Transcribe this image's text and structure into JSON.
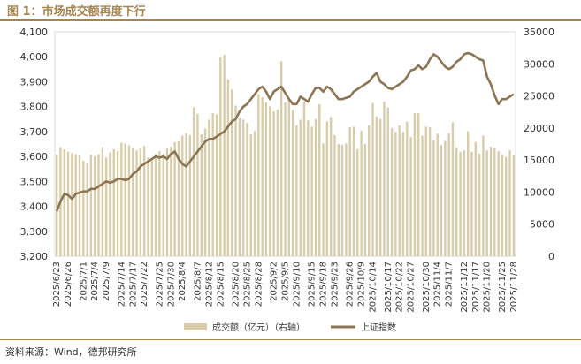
{
  "title": "图 1：市场成交额再度下行",
  "source": "资料来源：Wind，德邦研究所",
  "colors": {
    "bar": "#d8cda8",
    "line": "#8c7553",
    "accent": "#a5864d"
  },
  "chart_data": {
    "type": "bar+line",
    "series": [
      {
        "name": "成交额（亿元）（右轴）",
        "type": "bar",
        "axis": "right",
        "values": [
          15800,
          17000,
          16700,
          16300,
          16100,
          15900,
          15700,
          14900,
          14600,
          15800,
          15600,
          15900,
          17000,
          15400,
          16200,
          16700,
          16400,
          17700,
          17600,
          17300,
          16800,
          16500,
          16800,
          17200,
          15400,
          15300,
          15900,
          16400,
          16000,
          16800,
          17100,
          17800,
          17900,
          18800,
          19200,
          18900,
          23200,
          22200,
          19000,
          19900,
          21300,
          22300,
          22100,
          31000,
          31400,
          27600,
          26000,
          23500,
          21600,
          21300,
          20800,
          19000,
          19500,
          25300,
          24800,
          24000,
          23400,
          22600,
          22900,
          30400,
          24000,
          24700,
          22800,
          20400,
          21300,
          24100,
          21200,
          20200,
          21400,
          23700,
          17600,
          21000,
          21700,
          18900,
          17500,
          17400,
          17600,
          20100,
          20200,
          16700,
          19600,
          17500,
          20400,
          23900,
          21800,
          21400,
          24100,
          23200,
          20000,
          19400,
          20400,
          19400,
          21000,
          18600,
          22300,
          22300,
          18800,
          20200,
          20100,
          18100,
          19100,
          17300,
          18000,
          19200,
          20900,
          16900,
          16300,
          16500,
          19500,
          16300,
          17800,
          16000,
          18800,
          16500,
          17100,
          16900,
          16400,
          15800,
          15500,
          16500,
          15700
        ],
        "note": "daily turnover, right axis 0–35000"
      },
      {
        "name": "上证指数",
        "type": "line",
        "axis": "left",
        "values": [
          3380,
          3420,
          3450,
          3445,
          3430,
          3450,
          3455,
          3460,
          3460,
          3470,
          3470,
          3480,
          3490,
          3500,
          3495,
          3500,
          3510,
          3510,
          3505,
          3510,
          3530,
          3540,
          3560,
          3570,
          3580,
          3590,
          3600,
          3595,
          3600,
          3590,
          3610,
          3620,
          3590,
          3570,
          3560,
          3580,
          3600,
          3620,
          3640,
          3660,
          3670,
          3670,
          3680,
          3690,
          3700,
          3720,
          3740,
          3750,
          3780,
          3800,
          3810,
          3830,
          3850,
          3870,
          3880,
          3860,
          3830,
          3860,
          3870,
          3880,
          3855,
          3830,
          3810,
          3810,
          3840,
          3830,
          3820,
          3850,
          3875,
          3875,
          3860,
          3880,
          3870,
          3850,
          3830,
          3830,
          3835,
          3840,
          3860,
          3870,
          3880,
          3890,
          3900,
          3920,
          3935,
          3900,
          3890,
          3875,
          3870,
          3880,
          3890,
          3900,
          3920,
          3945,
          3950,
          3965,
          3950,
          3960,
          3990,
          4010,
          4000,
          3980,
          3960,
          3950,
          3960,
          3980,
          3990,
          4010,
          4015,
          4010,
          4000,
          3990,
          3985,
          3920,
          3890,
          3845,
          3810,
          3830,
          3830,
          3840,
          3850
        ],
        "note": "Shanghai Composite close, left axis 3200–4100"
      }
    ],
    "x_tick_labels": [
      "2025/6/23",
      "2025/6/26",
      "2025/7/1",
      "2025/7/4",
      "2025/7/9",
      "2025/7/14",
      "2025/7/17",
      "2025/7/22",
      "2025/7/25",
      "2025/7/30",
      "2025/8/4",
      "2025/8/7",
      "2025/8/12",
      "2025/8/15",
      "2025/8/20",
      "2025/8/25",
      "2025/8/28",
      "2025/9/2",
      "2025/9/5",
      "2025/9/10",
      "2025/9/15",
      "2025/9/18",
      "2025/9/23",
      "2025/9/26",
      "2025/10/9",
      "2025/10/14",
      "2025/10/17",
      "2025/10/22",
      "2025/10/27",
      "2025/10/30",
      "2025/11/4",
      "2025/11/7",
      "2025/11/12",
      "2025/11/17",
      "2025/11/20",
      "2025/11/25",
      "2025/11/28"
    ],
    "left_axis": {
      "min": 3200,
      "max": 4100,
      "ticks": [
        "3,200",
        "3,300",
        "3,400",
        "3,500",
        "3,600",
        "3,700",
        "3,800",
        "3,900",
        "4,000",
        "4,100"
      ]
    },
    "right_axis": {
      "min": 0,
      "max": 35000,
      "ticks": [
        "0",
        "5000",
        "10000",
        "15000",
        "20000",
        "25000",
        "30000",
        "35000"
      ]
    },
    "legend": [
      "成交额（亿元）（右轴）",
      "上证指数"
    ],
    "legend_position": "bottom"
  }
}
